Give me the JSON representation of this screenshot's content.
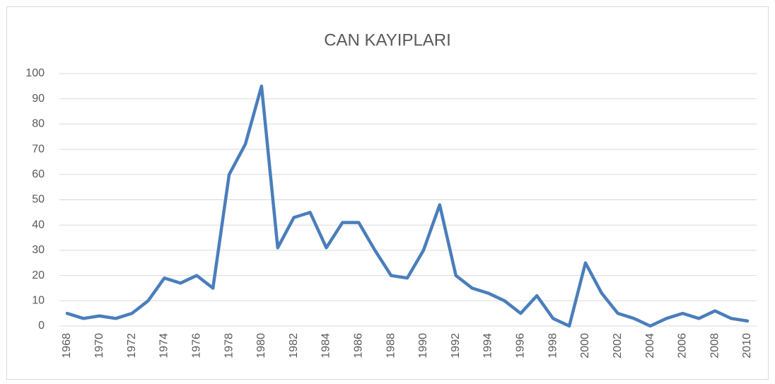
{
  "chart_data": {
    "type": "line",
    "title": "CAN KAYIPLARI",
    "x": [
      1968,
      1969,
      1970,
      1971,
      1972,
      1973,
      1974,
      1975,
      1976,
      1977,
      1978,
      1979,
      1980,
      1981,
      1982,
      1983,
      1984,
      1985,
      1986,
      1987,
      1988,
      1989,
      1990,
      1991,
      1992,
      1993,
      1994,
      1995,
      1996,
      1997,
      1998,
      1999,
      2000,
      2001,
      2002,
      2003,
      2004,
      2005,
      2006,
      2007,
      2008,
      2009,
      2010
    ],
    "series": [
      {
        "name": "CAN KAYIPLARI",
        "color": "#4a7ebb",
        "values": [
          5,
          3,
          4,
          3,
          5,
          10,
          19,
          17,
          20,
          15,
          60,
          72,
          95,
          31,
          43,
          45,
          31,
          41,
          41,
          30,
          20,
          19,
          30,
          48,
          20,
          15,
          13,
          10,
          5,
          12,
          3,
          0,
          25,
          13,
          5,
          3,
          0,
          3,
          5,
          3,
          6,
          3,
          2
        ]
      }
    ],
    "xlim": [
      1968,
      2010
    ],
    "xticks": [
      1968,
      1970,
      1972,
      1974,
      1976,
      1978,
      1980,
      1982,
      1984,
      1986,
      1988,
      1990,
      1992,
      1994,
      1996,
      1998,
      2000,
      2002,
      2004,
      2006,
      2008,
      2010
    ],
    "ylim": [
      0,
      100
    ],
    "yticks": [
      0,
      10,
      20,
      30,
      40,
      50,
      60,
      70,
      80,
      90,
      100
    ],
    "grid": true
  }
}
